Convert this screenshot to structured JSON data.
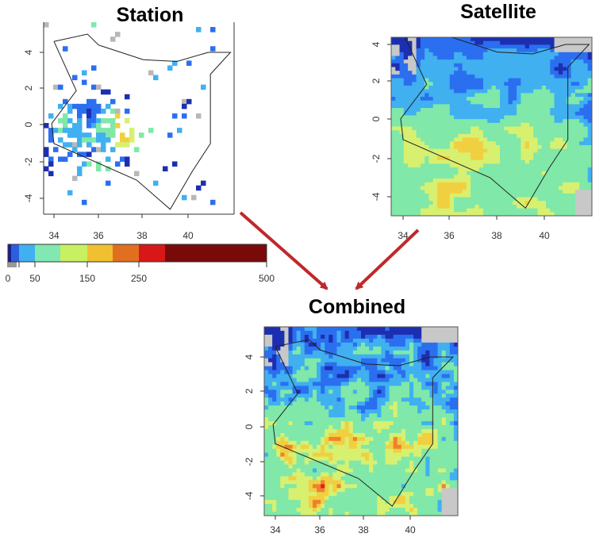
{
  "panels": [
    {
      "title": "Station",
      "xticks": [
        "34",
        "36",
        "38",
        "40"
      ],
      "yticks": [
        "4",
        "2",
        "0",
        "-2",
        "-4"
      ]
    },
    {
      "title": "Satellite",
      "xticks": [
        "34",
        "36",
        "38",
        "40"
      ],
      "yticks": [
        "4",
        "2",
        "0",
        "-2",
        "-4"
      ]
    },
    {
      "title": "Combined",
      "xticks": [
        "34",
        "36",
        "38",
        "40"
      ],
      "yticks": [
        "4",
        "2",
        "0",
        "-2",
        "-4"
      ]
    }
  ],
  "colorbar": {
    "labels": [
      "0",
      "50",
      "150",
      "250",
      "500"
    ]
  }
}
